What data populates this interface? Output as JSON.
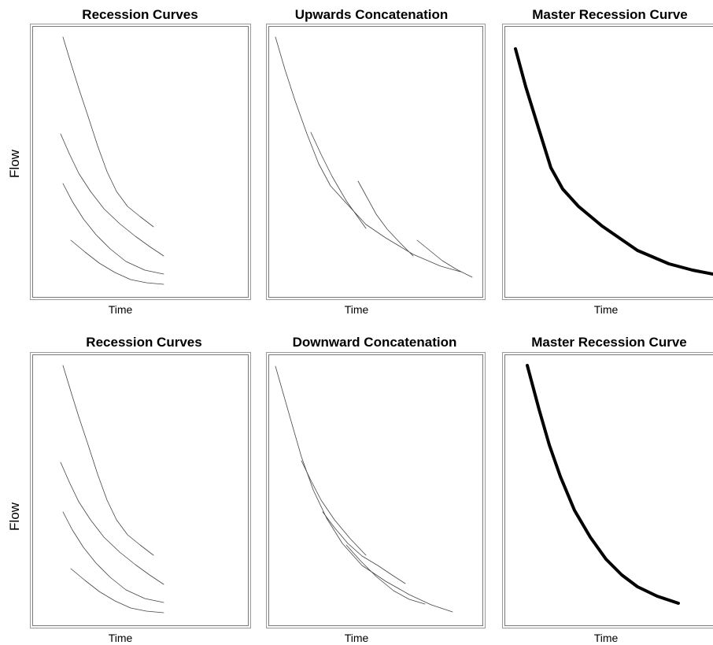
{
  "rows": [
    {
      "y_label": "Flow",
      "panels": [
        {
          "title": "Recession Curves",
          "x_label": "Time"
        },
        {
          "title": "Upwards Concatenation",
          "x_label": "Time"
        },
        {
          "title": "Master Recession Curve",
          "x_label": "Time"
        }
      ]
    },
    {
      "y_label": "Flow",
      "panels": [
        {
          "title": "Recession Curves",
          "x_label": "Time"
        },
        {
          "title": "Downward Concatenation",
          "x_label": "Time"
        },
        {
          "title": "Master Recession Curve",
          "x_label": "Time"
        }
      ]
    }
  ]
}
